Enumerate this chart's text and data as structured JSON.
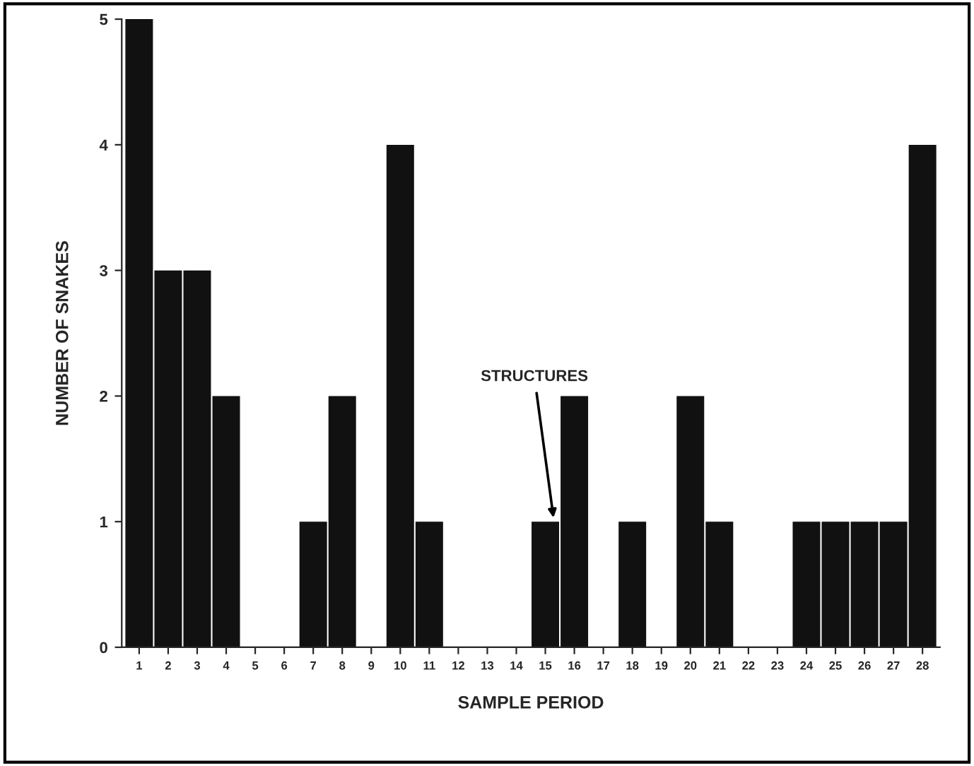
{
  "chart_data": {
    "type": "bar",
    "xlabel": "SAMPLE PERIOD",
    "ylabel": "NUMBER OF SNAKES",
    "categories": [
      "1",
      "2",
      "3",
      "4",
      "5",
      "6",
      "7",
      "8",
      "9",
      "10",
      "11",
      "12",
      "13",
      "14",
      "15",
      "16",
      "17",
      "18",
      "19",
      "20",
      "21",
      "22",
      "23",
      "24",
      "25",
      "26",
      "27",
      "28"
    ],
    "values": [
      5,
      3,
      3,
      2,
      0,
      0,
      1,
      2,
      0,
      4,
      1,
      0,
      0,
      0,
      1,
      2,
      0,
      1,
      0,
      2,
      1,
      0,
      0,
      1,
      1,
      1,
      1,
      4
    ],
    "color": "#111111",
    "ylim": [
      0,
      5
    ],
    "yticks": [
      0,
      1,
      2,
      3,
      4,
      5
    ],
    "grid": false,
    "annotations": [
      {
        "text": "STRUCTURES",
        "x": "15",
        "y": 1
      }
    ]
  }
}
